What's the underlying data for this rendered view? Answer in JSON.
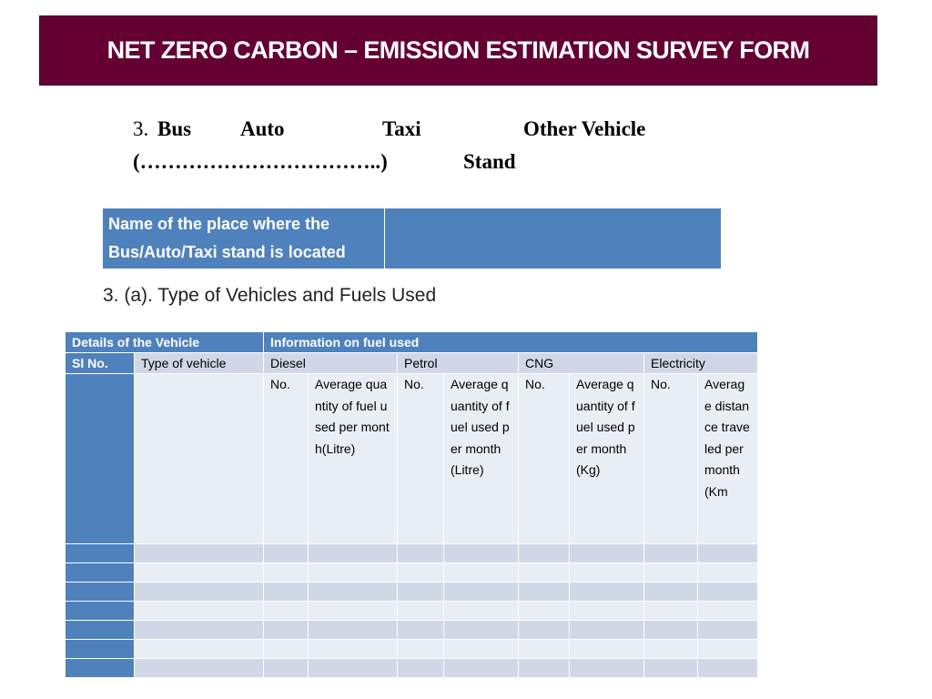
{
  "header": {
    "title": "NET ZERO CARBON – EMISSION ESTIMATION SURVEY FORM"
  },
  "stand_line": {
    "number": "3.",
    "options": [
      "Bus",
      "Auto",
      "Taxi",
      "Other Vehicle"
    ],
    "blank": "(……………………………..)",
    "suffix": "Stand"
  },
  "place_table": {
    "label": "Name of the place where the Bus/Auto/Taxi stand is located",
    "value": ""
  },
  "section": {
    "heading": "3. (a). Type of Vehicles and Fuels Used"
  },
  "fuel_table": {
    "group_headers": [
      "Details of the Vehicle",
      "Information on fuel used"
    ],
    "column_headers": [
      "Sl No.",
      "Type of vehicle",
      "Diesel",
      "Petrol",
      "CNG",
      "Electricity"
    ],
    "sub_headers": [
      "No.",
      "Average quantity of fuel used per month(Litre)",
      "No.",
      "Average quantity of fuel used per month(Litre)",
      "No.",
      "Average quantity of fuel used per month(Kg)",
      "No.",
      "Average distance traveled per month (Km"
    ],
    "rows": [
      [
        "",
        "",
        "",
        "",
        "",
        "",
        "",
        "",
        "",
        ""
      ],
      [
        "",
        "",
        "",
        "",
        "",
        "",
        "",
        "",
        "",
        ""
      ],
      [
        "",
        "",
        "",
        "",
        "",
        "",
        "",
        "",
        "",
        ""
      ],
      [
        "",
        "",
        "",
        "",
        "",
        "",
        "",
        "",
        "",
        ""
      ],
      [
        "",
        "",
        "",
        "",
        "",
        "",
        "",
        "",
        "",
        ""
      ],
      [
        "",
        "",
        "",
        "",
        "",
        "",
        "",
        "",
        "",
        ""
      ],
      [
        "",
        "",
        "",
        "",
        "",
        "",
        "",
        "",
        "",
        ""
      ]
    ]
  },
  "colors": {
    "banner": "#650033",
    "header_blue": "#4f81bd",
    "row_dark": "#d0d8e8",
    "row_light": "#e9edf4"
  }
}
